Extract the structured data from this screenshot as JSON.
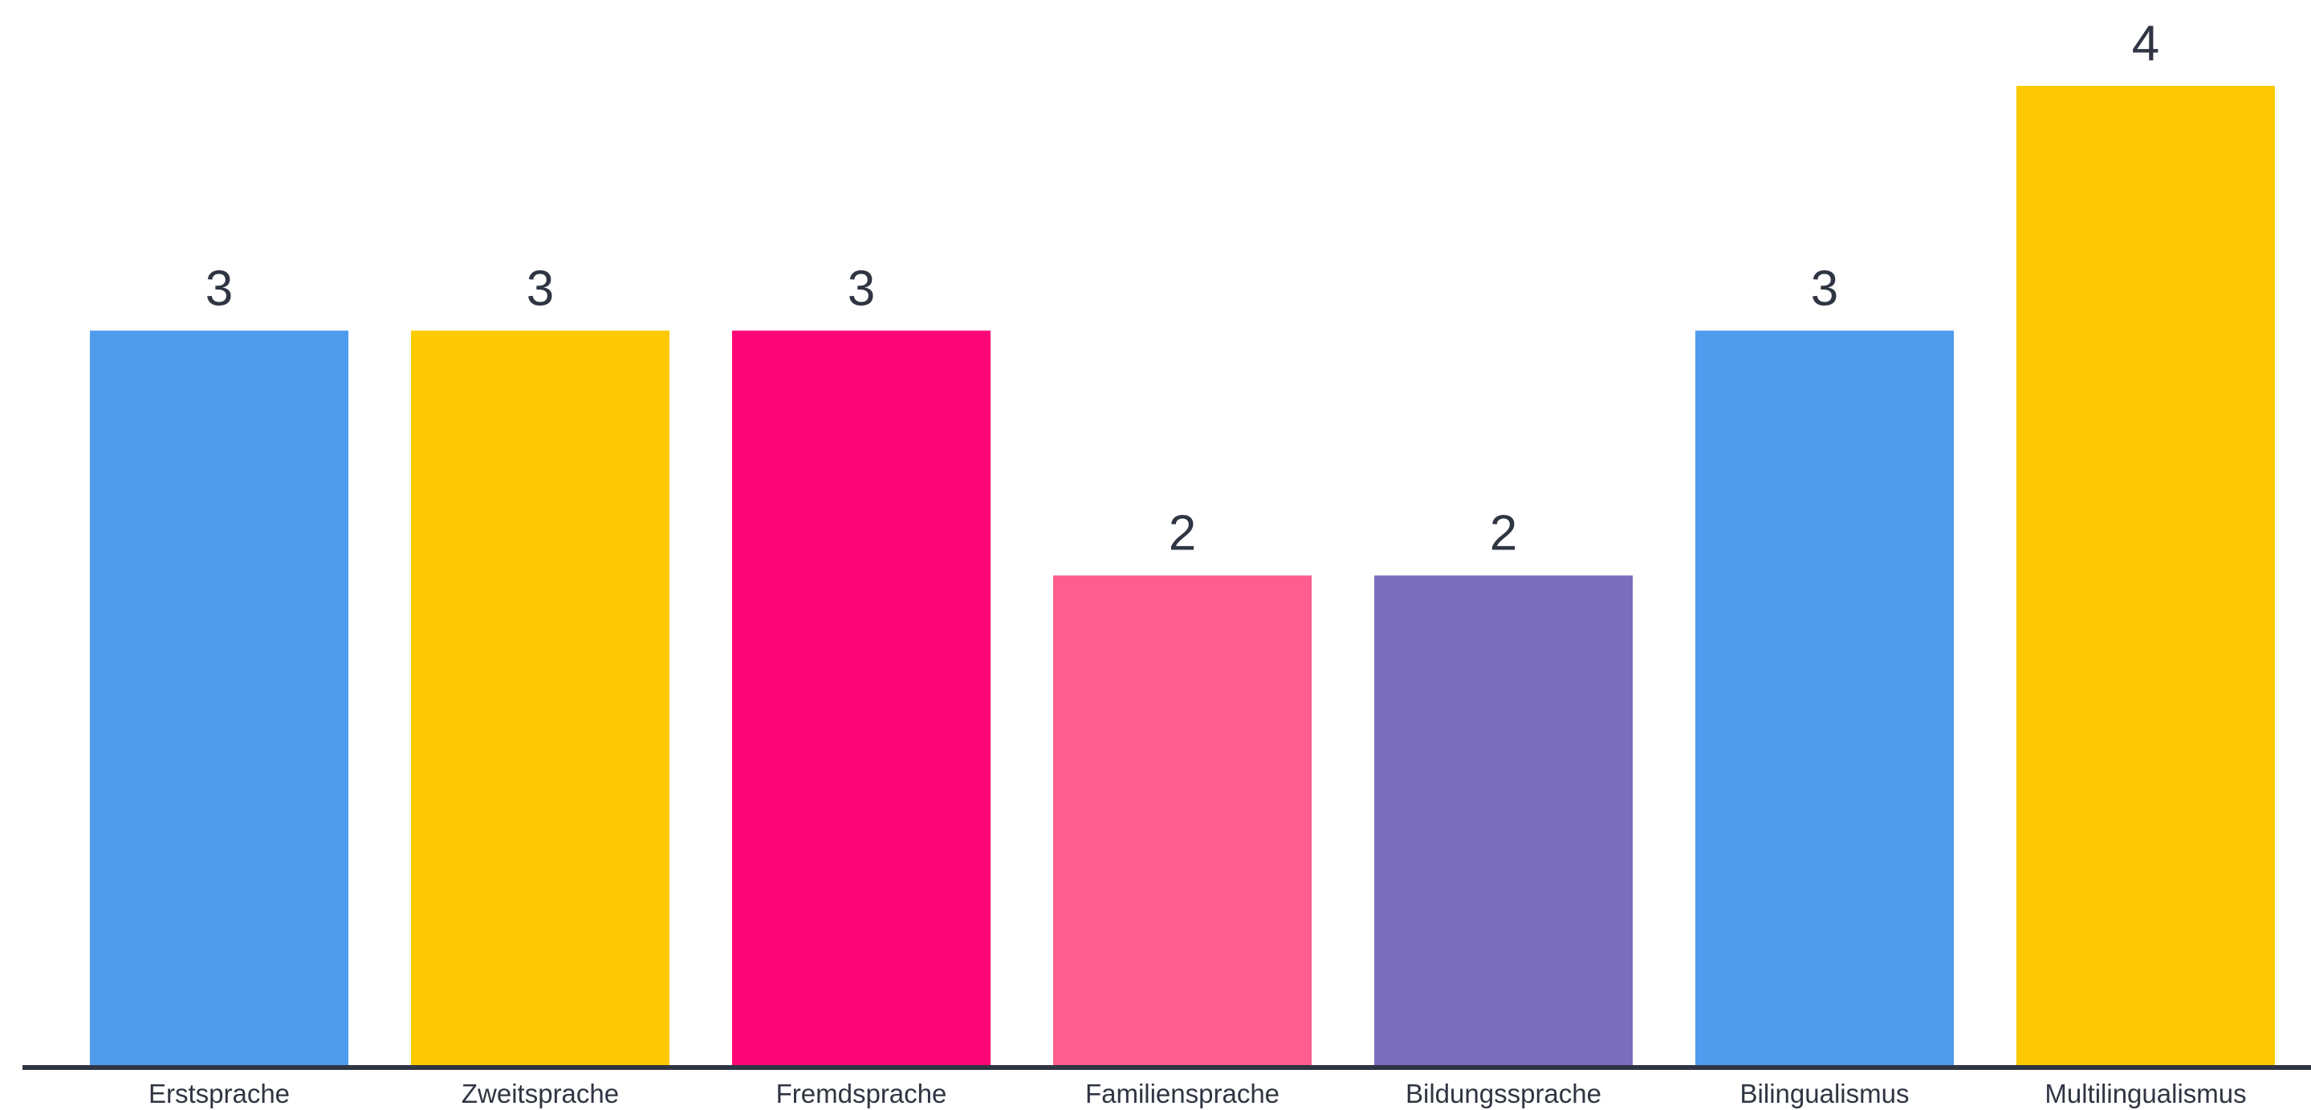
{
  "chart_data": {
    "type": "bar",
    "title": "",
    "xlabel": "",
    "ylabel": "",
    "categories": [
      "Erstsprache",
      "Zweitsprache",
      "Fremdsprache",
      "Familiensprache",
      "Bildungssprache",
      "Bilingualismus",
      "Multilingualismus"
    ],
    "values": [
      3,
      3,
      3,
      2,
      2,
      3,
      4
    ],
    "colors": [
      "#4f9bee",
      "#fdc900",
      "#ff0677",
      "#ff5d8d",
      "#7d6dbf",
      "#4f9bee",
      "#fdc900"
    ],
    "ylim": [
      0,
      4
    ],
    "grid": false,
    "legend": "none",
    "data_labels": true,
    "axis_color": "#2f3542"
  }
}
